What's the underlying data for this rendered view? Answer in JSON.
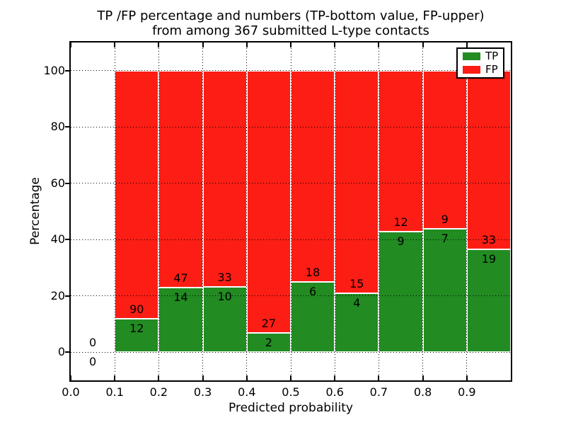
{
  "chart_data": {
    "type": "bar",
    "stacked": true,
    "title_lines": [
      "TP /FP percentage and numbers (TP-bottom value, FP-upper)",
      "from among 367 submitted L-type contacts"
    ],
    "annotation_scheme": "TP count printed at bottom of boundary, FP count printed above it",
    "xlabel": "Predicted probability",
    "ylabel": "Percentage",
    "xlim": [
      0.0,
      1.0
    ],
    "ylim": [
      -10,
      110
    ],
    "grid": true,
    "background": "#ffffff",
    "xticks": {
      "values": [
        0.0,
        0.1,
        0.2,
        0.3,
        0.4,
        0.5,
        0.6,
        0.7,
        0.8,
        0.9
      ],
      "labels": [
        "0.0",
        "0.1",
        "0.2",
        "0.3",
        "0.4",
        "0.5",
        "0.6",
        "0.7",
        "0.8",
        "0.9"
      ]
    },
    "yticks": {
      "values": [
        0,
        20,
        40,
        60,
        80,
        100
      ],
      "labels": [
        "0",
        "20",
        "40",
        "60",
        "80",
        "100"
      ]
    },
    "legend": {
      "position": "upper right",
      "entries": [
        {
          "label": "TP",
          "color": "#228b22"
        },
        {
          "label": "FP",
          "color": "#fc1d14"
        }
      ]
    },
    "bins": [
      {
        "range": [
          0.0,
          0.1
        ],
        "tp_count": 0,
        "fp_count": 0,
        "tp_pct": 0.0,
        "fp_pct": 0.0
      },
      {
        "range": [
          0.1,
          0.2
        ],
        "tp_count": 12,
        "fp_count": 90,
        "tp_pct": 11.76,
        "fp_pct": 88.24
      },
      {
        "range": [
          0.2,
          0.3
        ],
        "tp_count": 14,
        "fp_count": 47,
        "tp_pct": 22.95,
        "fp_pct": 77.05
      },
      {
        "range": [
          0.3,
          0.4
        ],
        "tp_count": 10,
        "fp_count": 33,
        "tp_pct": 23.26,
        "fp_pct": 76.74
      },
      {
        "range": [
          0.4,
          0.5
        ],
        "tp_count": 2,
        "fp_count": 27,
        "tp_pct": 6.9,
        "fp_pct": 93.1
      },
      {
        "range": [
          0.5,
          0.6
        ],
        "tp_count": 6,
        "fp_count": 18,
        "tp_pct": 25.0,
        "fp_pct": 75.0
      },
      {
        "range": [
          0.6,
          0.7
        ],
        "tp_count": 4,
        "fp_count": 15,
        "tp_pct": 21.05,
        "fp_pct": 78.95
      },
      {
        "range": [
          0.7,
          0.8
        ],
        "tp_count": 9,
        "fp_count": 12,
        "tp_pct": 42.86,
        "fp_pct": 57.14
      },
      {
        "range": [
          0.8,
          0.9
        ],
        "tp_count": 7,
        "fp_count": 9,
        "tp_pct": 43.75,
        "fp_pct": 56.25
      },
      {
        "range": [
          0.9,
          1.0
        ],
        "tp_count": 19,
        "fp_count": 33,
        "tp_pct": 36.54,
        "fp_pct": 63.46
      }
    ]
  }
}
